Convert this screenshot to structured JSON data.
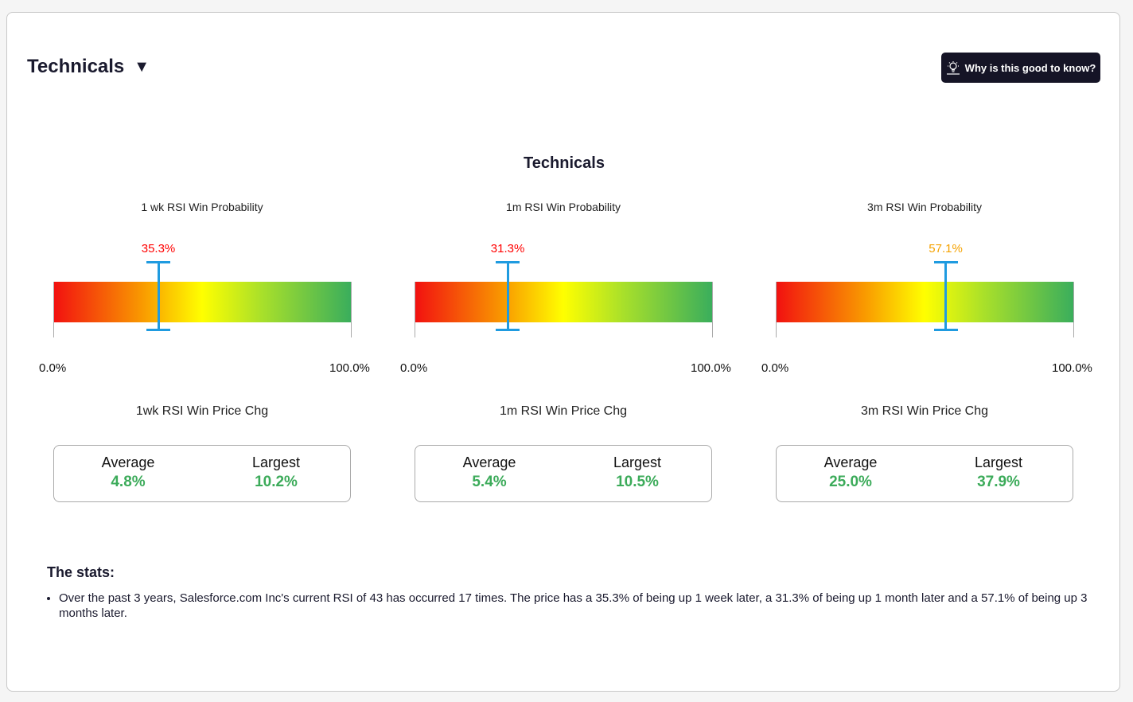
{
  "header": {
    "title": "Technicals",
    "caret": "▼",
    "why_button_label": "Why is this good to know?"
  },
  "section_title": "Technicals",
  "gauges": [
    {
      "label": "1 wk RSI Win Probability",
      "value_text": "35.3%",
      "value": 35.3,
      "value_color": "#ff0000",
      "min_label": "0.0%",
      "max_label": "100.0%",
      "chg_title": "1wk RSI Win Price Chg",
      "average_label": "Average",
      "average_value": "4.8%",
      "largest_label": "Largest",
      "largest_value": "10.2%"
    },
    {
      "label": "1m RSI Win Probability",
      "value_text": "31.3%",
      "value": 31.3,
      "value_color": "#ff0000",
      "min_label": "0.0%",
      "max_label": "100.0%",
      "chg_title": "1m RSI Win Price Chg",
      "average_label": "Average",
      "average_value": "5.4%",
      "largest_label": "Largest",
      "largest_value": "10.5%"
    },
    {
      "label": "3m RSI Win Probability",
      "value_text": "57.1%",
      "value": 57.1,
      "value_color": "#f5a200",
      "min_label": "0.0%",
      "max_label": "100.0%",
      "chg_title": "3m RSI Win Price Chg",
      "average_label": "Average",
      "average_value": "25.0%",
      "largest_label": "Largest",
      "largest_value": "37.9%"
    }
  ],
  "stats": {
    "title": "The stats:",
    "items": [
      "Over the past 3 years, Salesforce.com Inc's current RSI of 43 has occurred 17 times. The price has a 35.3% of being up 1 week later, a 31.3% of being up 1 month later and a 57.1% of being up 3 months later."
    ]
  },
  "colors": {
    "accent_green": "#3cab5a",
    "marker_blue": "#1f9be0",
    "button_bg": "#151426"
  }
}
